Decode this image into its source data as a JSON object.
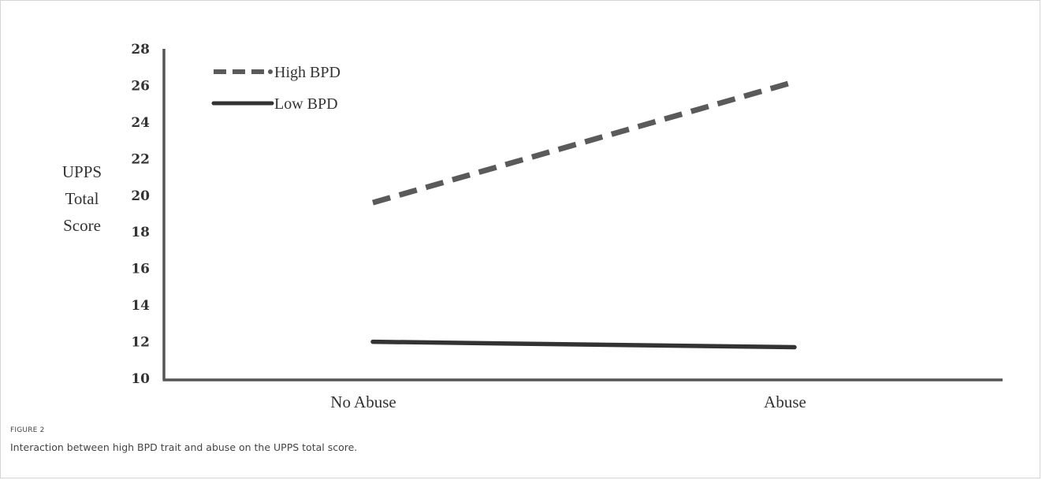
{
  "figure": {
    "label": "FIGURE 2",
    "caption": "Interaction between high BPD trait and abuse on the UPPS total score."
  },
  "colors": {
    "axis": "#555555",
    "high": "#5a5a5a",
    "low": "#333333"
  },
  "chart_data": {
    "type": "line",
    "title": "",
    "xlabel": "",
    "ylabel_lines": [
      "UPPS",
      "Total",
      "Score"
    ],
    "categories": [
      "No Abuse",
      "Abuse"
    ],
    "ylim": [
      10,
      28
    ],
    "yticks": [
      10,
      12,
      14,
      16,
      18,
      20,
      22,
      24,
      26,
      28
    ],
    "grid": false,
    "legend_position": "top-left",
    "series": [
      {
        "name": "High BPD",
        "values": [
          19.6,
          26.2
        ],
        "style": "dashed"
      },
      {
        "name": "Low BPD",
        "values": [
          12.0,
          11.7
        ],
        "style": "solid"
      }
    ]
  }
}
